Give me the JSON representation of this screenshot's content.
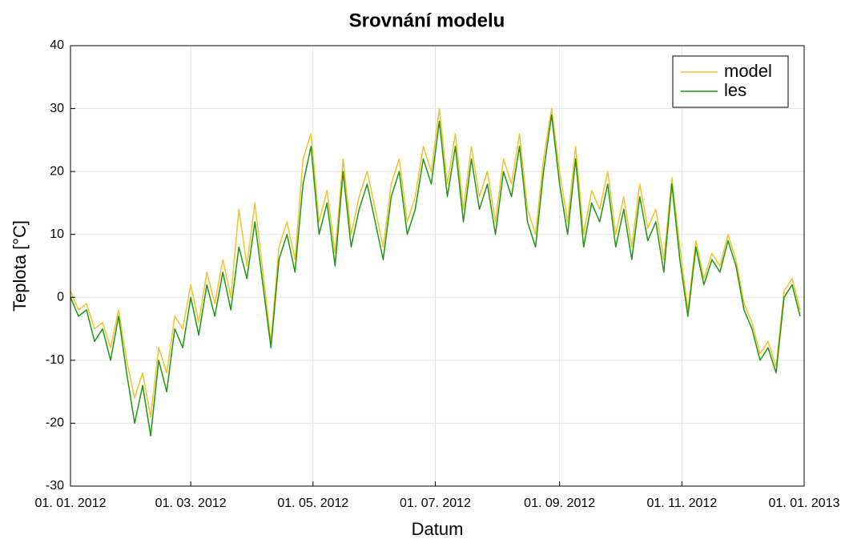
{
  "chart_data": {
    "type": "line",
    "title": "Srovnání modelu",
    "xlabel": "Datum",
    "ylabel": "Teplota [°C]",
    "x": [
      "2012-01-01",
      "2012-01-05",
      "2012-01-09",
      "2012-01-13",
      "2012-01-17",
      "2012-01-21",
      "2012-01-25",
      "2012-01-29",
      "2012-02-02",
      "2012-02-06",
      "2012-02-10",
      "2012-02-14",
      "2012-02-18",
      "2012-02-22",
      "2012-02-26",
      "2012-03-01",
      "2012-03-05",
      "2012-03-09",
      "2012-03-13",
      "2012-03-17",
      "2012-03-21",
      "2012-03-25",
      "2012-03-29",
      "2012-04-02",
      "2012-04-06",
      "2012-04-10",
      "2012-04-14",
      "2012-04-18",
      "2012-04-22",
      "2012-04-26",
      "2012-04-30",
      "2012-05-04",
      "2012-05-08",
      "2012-05-12",
      "2012-05-16",
      "2012-05-20",
      "2012-05-24",
      "2012-05-28",
      "2012-06-01",
      "2012-06-05",
      "2012-06-09",
      "2012-06-13",
      "2012-06-17",
      "2012-06-21",
      "2012-06-25",
      "2012-06-29",
      "2012-07-03",
      "2012-07-07",
      "2012-07-11",
      "2012-07-15",
      "2012-07-19",
      "2012-07-23",
      "2012-07-27",
      "2012-07-31",
      "2012-08-04",
      "2012-08-08",
      "2012-08-12",
      "2012-08-16",
      "2012-08-20",
      "2012-08-24",
      "2012-08-28",
      "2012-09-01",
      "2012-09-05",
      "2012-09-09",
      "2012-09-13",
      "2012-09-17",
      "2012-09-21",
      "2012-09-25",
      "2012-09-29",
      "2012-10-03",
      "2012-10-07",
      "2012-10-11",
      "2012-10-15",
      "2012-10-19",
      "2012-10-23",
      "2012-10-27",
      "2012-10-31",
      "2012-11-04",
      "2012-11-08",
      "2012-11-12",
      "2012-11-16",
      "2012-11-20",
      "2012-11-24",
      "2012-11-28",
      "2012-12-02",
      "2012-12-06",
      "2012-12-10",
      "2012-12-14",
      "2012-12-18",
      "2012-12-22",
      "2012-12-26",
      "2012-12-30"
    ],
    "series": [
      {
        "name": "model",
        "color": "#f5c02a",
        "values": [
          1,
          -2,
          -1,
          -5,
          -4,
          -8,
          -2,
          -10,
          -16,
          -12,
          -19,
          -8,
          -12,
          -3,
          -5,
          2,
          -4,
          4,
          -1,
          6,
          0,
          14,
          5,
          15,
          4,
          -7,
          8,
          12,
          6,
          22,
          26,
          12,
          17,
          7,
          22,
          10,
          16,
          20,
          14,
          8,
          18,
          22,
          12,
          16,
          24,
          20,
          30,
          18,
          26,
          14,
          24,
          16,
          20,
          12,
          22,
          18,
          26,
          14,
          10,
          22,
          30,
          20,
          12,
          24,
          10,
          17,
          14,
          20,
          10,
          16,
          8,
          18,
          11,
          14,
          6,
          19,
          8,
          -2,
          9,
          3,
          7,
          5,
          10,
          6,
          -1,
          -4,
          -9,
          -7,
          -11,
          1,
          3,
          -2
        ]
      },
      {
        "name": "les",
        "color": "#1a9a0b",
        "values": [
          0,
          -3,
          -2,
          -7,
          -5,
          -10,
          -3,
          -12,
          -20,
          -14,
          -22,
          -10,
          -15,
          -5,
          -8,
          0,
          -6,
          2,
          -3,
          4,
          -2,
          8,
          3,
          12,
          2,
          -8,
          6,
          10,
          4,
          18,
          24,
          10,
          15,
          5,
          20,
          8,
          14,
          18,
          12,
          6,
          16,
          20,
          10,
          14,
          22,
          18,
          28,
          16,
          24,
          12,
          22,
          14,
          18,
          10,
          20,
          16,
          24,
          12,
          8,
          20,
          29,
          18,
          10,
          22,
          8,
          15,
          12,
          18,
          8,
          14,
          6,
          16,
          9,
          12,
          4,
          18,
          6,
          -3,
          8,
          2,
          6,
          4,
          9,
          5,
          -2,
          -5,
          -10,
          -8,
          -12,
          0,
          2,
          -3
        ]
      }
    ],
    "xlim": [
      "2012-01-01",
      "2013-01-01"
    ],
    "xticks": [
      {
        "value": "2012-01-01",
        "label": "01. 01. 2012"
      },
      {
        "value": "2012-03-01",
        "label": "01. 03. 2012"
      },
      {
        "value": "2012-05-01",
        "label": "01. 05. 2012"
      },
      {
        "value": "2012-07-01",
        "label": "01. 07. 2012"
      },
      {
        "value": "2012-09-01",
        "label": "01. 09. 2012"
      },
      {
        "value": "2012-11-01",
        "label": "01. 11. 2012"
      },
      {
        "value": "2013-01-01",
        "label": "01. 01. 2013"
      }
    ],
    "ylim": [
      -30,
      40
    ],
    "yticks": [
      -30,
      -20,
      -10,
      0,
      10,
      20,
      30,
      40
    ],
    "grid": true,
    "legend": "upper right"
  }
}
